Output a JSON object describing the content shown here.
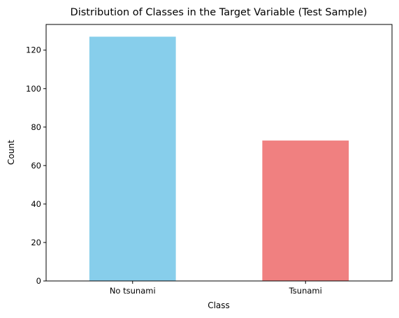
{
  "chart_data": {
    "type": "bar",
    "title": "Distribution of Classes in the Target Variable (Test Sample)",
    "xlabel": "Class",
    "ylabel": "Count",
    "categories": [
      "No tsunami",
      "Tsunami"
    ],
    "values": [
      127,
      73
    ],
    "colors": [
      "#87ceeb",
      "#f08080"
    ],
    "ylim": [
      0,
      133.35
    ],
    "yticks": [
      0,
      20,
      40,
      60,
      80,
      100,
      120
    ],
    "grid": false,
    "legend": "none"
  }
}
